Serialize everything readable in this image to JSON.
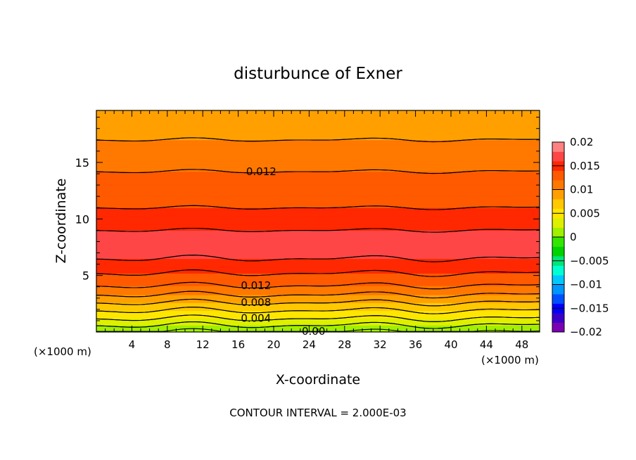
{
  "chart_data": {
    "type": "heatmap",
    "title": "disturbunce of Exner",
    "xlabel": "X-coordinate",
    "ylabel": "Z-coordinate",
    "x_unit_left": "(×1000 m)",
    "x_unit_right": "(×1000 m)",
    "xlim": [
      0,
      50
    ],
    "ylim": [
      0,
      19.6
    ],
    "x_ticks": [
      4,
      8,
      12,
      16,
      20,
      24,
      28,
      32,
      36,
      40,
      44,
      48
    ],
    "y_ticks": [
      5,
      10,
      15
    ],
    "footer": "CONTOUR INTERVAL = 2.000E-03",
    "contour_interval": 0.002,
    "contour_labels": [
      {
        "text": "0.012",
        "x": 18.6,
        "z": 14.2
      },
      {
        "text": "0.012",
        "x": 18.0,
        "z": 4.1
      },
      {
        "text": "0.008",
        "x": 18.0,
        "z": 2.6
      },
      {
        "text": "0.004",
        "x": 18.0,
        "z": 1.2
      },
      {
        "text": "0.00",
        "x": 24.5,
        "z": 0.05
      }
    ],
    "profile": {
      "z": [
        0.0,
        0.6,
        1.2,
        1.9,
        2.6,
        3.3,
        4.1,
        5.2,
        6.5,
        7.5,
        9.0,
        11.0,
        14.2,
        17.0,
        19.6
      ],
      "value": [
        0.0,
        0.002,
        0.004,
        0.006,
        0.008,
        0.01,
        0.012,
        0.014,
        0.016,
        0.0165,
        0.016,
        0.014,
        0.012,
        0.01,
        0.0085
      ]
    },
    "colorbar": {
      "min": -0.02,
      "max": 0.02,
      "tick_labels": [
        "0.02",
        "0.015",
        "0.01",
        "0.005",
        "0",
        "−0.005",
        "−0.01",
        "−0.015",
        "−0.02"
      ],
      "tick_values": [
        0.02,
        0.015,
        0.01,
        0.005,
        0,
        -0.005,
        -0.01,
        -0.015,
        -0.02
      ],
      "colors": [
        "#7b00b4",
        "#3a00c8",
        "#0000ff",
        "#0050ff",
        "#0096ff",
        "#00c8ff",
        "#00ffd2",
        "#00e678",
        "#00d200",
        "#32e600",
        "#a0f000",
        "#dcf000",
        "#ffe600",
        "#ffc800",
        "#ffa000",
        "#ff7800",
        "#ff5a00",
        "#ff2800",
        "#ff4646",
        "#ff8282"
      ]
    }
  }
}
